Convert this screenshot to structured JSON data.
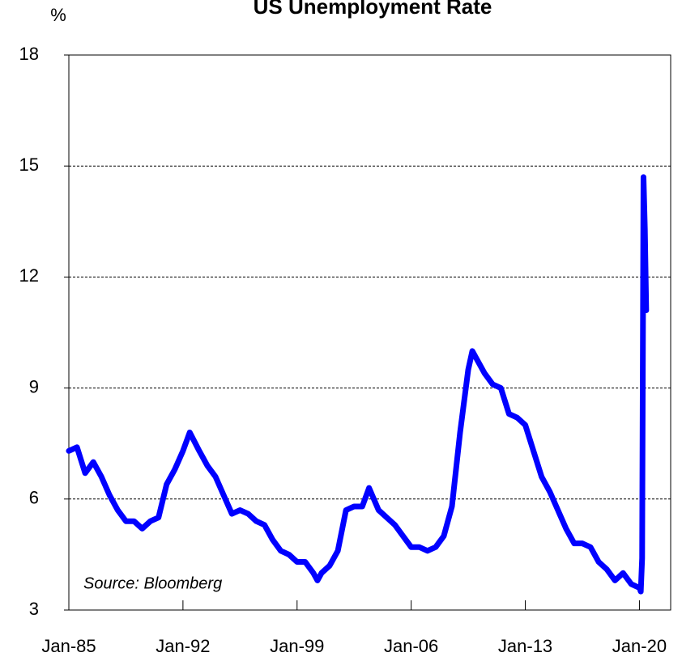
{
  "chart_data": {
    "type": "line",
    "title": "US Unemployment Rate",
    "y_label": "%",
    "annotation": "Source: Bloomberg",
    "x": [
      "1985-01",
      "1985-07",
      "1986-01",
      "1986-07",
      "1987-01",
      "1987-07",
      "1988-01",
      "1988-07",
      "1989-01",
      "1989-07",
      "1990-01",
      "1990-07",
      "1991-01",
      "1991-07",
      "1992-01",
      "1992-06",
      "1993-01",
      "1993-07",
      "1994-01",
      "1994-07",
      "1995-01",
      "1995-07",
      "1996-01",
      "1996-07",
      "1997-01",
      "1997-07",
      "1998-01",
      "1998-07",
      "1999-01",
      "1999-07",
      "2000-01",
      "2000-04",
      "2000-07",
      "2001-01",
      "2001-07",
      "2002-01",
      "2002-07",
      "2003-01",
      "2003-06",
      "2004-01",
      "2004-07",
      "2005-01",
      "2005-07",
      "2006-01",
      "2006-07",
      "2007-01",
      "2007-07",
      "2008-01",
      "2008-07",
      "2009-01",
      "2009-07",
      "2009-10",
      "2010-01",
      "2010-07",
      "2011-01",
      "2011-07",
      "2012-01",
      "2012-07",
      "2013-01",
      "2013-07",
      "2014-01",
      "2014-07",
      "2015-01",
      "2015-07",
      "2016-01",
      "2016-07",
      "2017-01",
      "2017-07",
      "2018-01",
      "2018-07",
      "2019-01",
      "2019-07",
      "2020-01",
      "2020-02",
      "2020-03",
      "2020-04",
      "2020-05",
      "2020-06"
    ],
    "series": [
      {
        "name": "Unemployment rate",
        "color": "#0000ff",
        "values": [
          7.3,
          7.4,
          6.7,
          7.0,
          6.6,
          6.1,
          5.7,
          5.4,
          5.4,
          5.2,
          5.4,
          5.5,
          6.4,
          6.8,
          7.3,
          7.8,
          7.3,
          6.9,
          6.6,
          6.1,
          5.6,
          5.7,
          5.6,
          5.4,
          5.3,
          4.9,
          4.6,
          4.5,
          4.3,
          4.3,
          4.0,
          3.8,
          4.0,
          4.2,
          4.6,
          5.7,
          5.8,
          5.8,
          6.3,
          5.7,
          5.5,
          5.3,
          5.0,
          4.7,
          4.7,
          4.6,
          4.7,
          5.0,
          5.8,
          7.8,
          9.5,
          10.0,
          9.8,
          9.4,
          9.1,
          9.0,
          8.3,
          8.2,
          8.0,
          7.3,
          6.6,
          6.2,
          5.7,
          5.2,
          4.8,
          4.8,
          4.7,
          4.3,
          4.1,
          3.8,
          4.0,
          3.7,
          3.6,
          3.5,
          4.4,
          14.7,
          13.3,
          11.1
        ]
      }
    ],
    "xlim": [
      "1985-01",
      "2021-12"
    ],
    "xticks": [
      {
        "value": "1985-01",
        "label": "Jan-85"
      },
      {
        "value": "1992-01",
        "label": "Jan-92"
      },
      {
        "value": "1999-01",
        "label": "Jan-99"
      },
      {
        "value": "2006-01",
        "label": "Jan-06"
      },
      {
        "value": "2013-01",
        "label": "Jan-13"
      },
      {
        "value": "2020-01",
        "label": "Jan-20"
      }
    ],
    "ylim": [
      3,
      18
    ],
    "yticks": [
      3,
      6,
      9,
      12,
      15,
      18
    ],
    "grid": true
  }
}
